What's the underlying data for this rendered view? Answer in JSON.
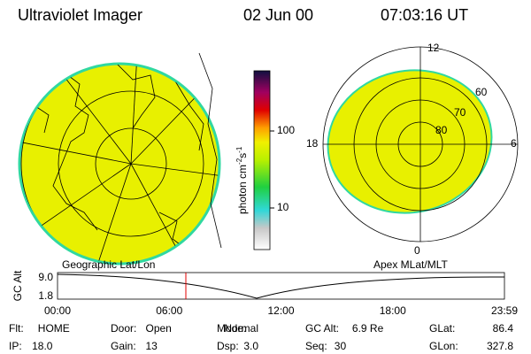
{
  "header": {
    "instrument": "Ultraviolet Imager",
    "date": "02 Jun 00",
    "time": "07:03:16 UT"
  },
  "colorbar": {
    "ticks": [
      "100",
      "10"
    ],
    "unit": [
      "photon cm",
      "-2",
      "s",
      "-1"
    ]
  },
  "polar_plot": {
    "mlt_labels": [
      "12",
      "18",
      "6",
      "0"
    ],
    "mlat_labels": [
      "60",
      "70",
      "80"
    ]
  },
  "panel_labels": [
    "Geographic Lat/Lon",
    "Apex MLat/MLT"
  ],
  "timeline": {
    "axis_label": "GC Alt",
    "y_labels": [
      "9.0",
      "1.8"
    ],
    "x_labels": [
      "00:00",
      "06:00",
      "12:00",
      "18:00",
      "23:59"
    ]
  },
  "footer": [
    [
      {
        "label": "Flt:",
        "value": "HOME"
      },
      {
        "label": "Door:",
        "value": "Open"
      },
      {
        "label": "Mode:",
        "value": "Normal"
      },
      {
        "label": "GC Alt:",
        "value": "6.9 Re"
      },
      {
        "label": "GLat:",
        "value": "86.4"
      }
    ],
    [
      {
        "label": "IP:",
        "value": "18.0"
      },
      {
        "label": "Gain:",
        "value": "13"
      },
      {
        "label": "Dsp:",
        "value": "3.0"
      },
      {
        "label": "Seq:",
        "value": "30"
      },
      {
        "label": "GLon:",
        "value": "327.8"
      }
    ]
  ]
}
